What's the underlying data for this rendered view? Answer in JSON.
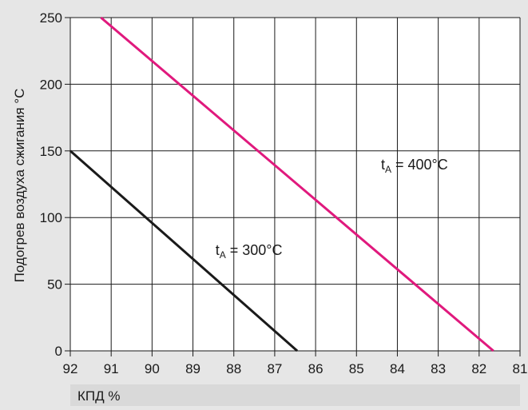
{
  "chart_data": {
    "type": "line",
    "xlabel": "КПД %",
    "ylabel": "Подогрев воздуха сжигания °C",
    "xlim": [
      92,
      81
    ],
    "ylim": [
      0,
      250
    ],
    "x_reversed": true,
    "x_ticks": [
      "92",
      "91",
      "90",
      "89",
      "88",
      "87",
      "86",
      "85",
      "84",
      "83",
      "82",
      "81"
    ],
    "y_ticks": [
      "0",
      "50",
      "100",
      "150",
      "200",
      "250"
    ],
    "grid": true,
    "series": [
      {
        "name": "tA = 300°C",
        "label_main": "t",
        "label_sub": "A",
        "label_rest": " = 300°C",
        "color": "#1a1a1a",
        "x": [
          92.0,
          86.45
        ],
        "y": [
          150,
          0
        ]
      },
      {
        "name": "tA = 400°C",
        "label_main": "t",
        "label_sub": "A",
        "label_rest": " = 400°C",
        "color": "#e0197d",
        "x": [
          91.25,
          81.65
        ],
        "y": [
          250,
          0
        ]
      }
    ]
  }
}
